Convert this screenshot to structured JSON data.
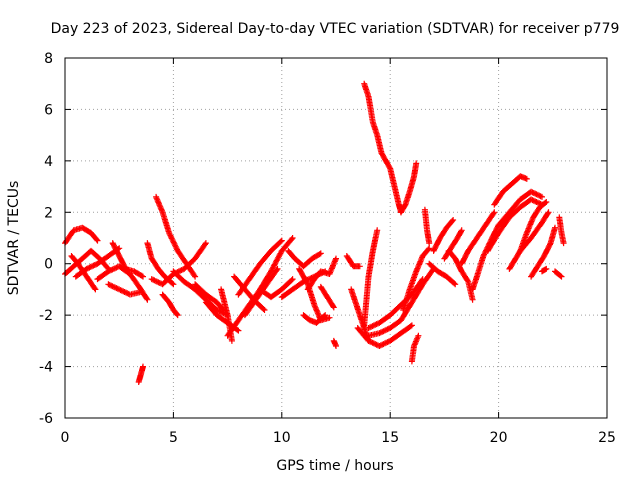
{
  "chart_data": {
    "type": "scatter",
    "title": "Day 223 of 2023, Sidereal Day-to-day VTEC variation (SDTVAR) for receiver p779",
    "xlabel": "GPS time / hours",
    "ylabel": "SDTVAR / TECUs",
    "xlim": [
      0,
      25
    ],
    "ylim": [
      -6,
      8
    ],
    "xticks": [
      0,
      5,
      10,
      15,
      20,
      25
    ],
    "yticks": [
      -6,
      -4,
      -2,
      0,
      2,
      4,
      6,
      8
    ],
    "grid": true,
    "marker": "+",
    "series": [
      {
        "name": "SDTVAR",
        "color": "#ff0000",
        "segments": [
          [
            [
              0.0,
              0.8
            ],
            [
              0.4,
              1.3
            ],
            [
              0.8,
              1.4
            ],
            [
              1.2,
              1.2
            ],
            [
              1.5,
              0.9
            ]
          ],
          [
            [
              0.0,
              -0.4
            ],
            [
              0.4,
              -0.1
            ],
            [
              0.8,
              0.2
            ],
            [
              1.2,
              0.5
            ],
            [
              1.6,
              0.2
            ],
            [
              2.0,
              -0.2
            ]
          ],
          [
            [
              0.3,
              0.3
            ],
            [
              0.6,
              0.0
            ],
            [
              1.0,
              -0.5
            ],
            [
              1.4,
              -1.0
            ]
          ],
          [
            [
              0.5,
              -0.5
            ],
            [
              1.0,
              -0.2
            ],
            [
              1.5,
              0.0
            ],
            [
              2.0,
              0.3
            ],
            [
              2.5,
              0.6
            ]
          ],
          [
            [
              1.5,
              -0.6
            ],
            [
              2.0,
              -0.3
            ],
            [
              2.5,
              -0.1
            ],
            [
              3.0,
              -0.4
            ],
            [
              3.5,
              -1.0
            ],
            [
              3.8,
              -1.4
            ]
          ],
          [
            [
              2.2,
              0.8
            ],
            [
              2.5,
              0.3
            ],
            [
              2.8,
              -0.2
            ],
            [
              3.2,
              -0.3
            ],
            [
              3.6,
              -0.5
            ]
          ],
          [
            [
              2.0,
              -0.8
            ],
            [
              2.5,
              -1.0
            ],
            [
              3.0,
              -1.2
            ],
            [
              3.5,
              -1.1
            ]
          ],
          [
            [
              3.4,
              -4.6
            ],
            [
              3.5,
              -4.3
            ],
            [
              3.6,
              -4.0
            ]
          ],
          [
            [
              3.8,
              0.8
            ],
            [
              4.0,
              0.2
            ],
            [
              4.3,
              -0.2
            ],
            [
              4.6,
              -0.5
            ],
            [
              5.0,
              -0.8
            ]
          ],
          [
            [
              4.2,
              2.6
            ],
            [
              4.5,
              2.0
            ],
            [
              4.8,
              1.2
            ],
            [
              5.2,
              0.5
            ],
            [
              5.6,
              0.0
            ],
            [
              6.0,
              -0.5
            ]
          ],
          [
            [
              4.5,
              -1.2
            ],
            [
              4.8,
              -1.5
            ],
            [
              5.0,
              -1.8
            ],
            [
              5.2,
              -2.0
            ]
          ],
          [
            [
              4.0,
              -0.6
            ],
            [
              4.5,
              -0.8
            ],
            [
              5.0,
              -0.4
            ],
            [
              5.5,
              -0.2
            ],
            [
              6.0,
              0.2
            ],
            [
              6.5,
              0.8
            ]
          ],
          [
            [
              5.0,
              -0.3
            ],
            [
              5.5,
              -0.7
            ],
            [
              6.0,
              -1.0
            ],
            [
              6.5,
              -1.4
            ],
            [
              7.0,
              -1.8
            ],
            [
              7.5,
              -2.0
            ]
          ],
          [
            [
              6.0,
              -0.8
            ],
            [
              6.5,
              -1.2
            ],
            [
              7.0,
              -1.5
            ],
            [
              7.3,
              -1.8
            ]
          ],
          [
            [
              6.5,
              -1.5
            ],
            [
              7.0,
              -2.0
            ],
            [
              7.5,
              -2.3
            ],
            [
              8.0,
              -2.6
            ]
          ],
          [
            [
              7.2,
              -1.0
            ],
            [
              7.5,
              -2.0
            ],
            [
              7.7,
              -3.0
            ]
          ],
          [
            [
              7.5,
              -2.8
            ],
            [
              8.0,
              -2.2
            ],
            [
              8.5,
              -1.6
            ],
            [
              9.0,
              -1.0
            ],
            [
              9.5,
              -0.3
            ],
            [
              10.0,
              0.5
            ],
            [
              10.5,
              1.0
            ]
          ],
          [
            [
              8.0,
              -1.2
            ],
            [
              8.5,
              -0.6
            ],
            [
              9.0,
              0.0
            ],
            [
              9.5,
              0.5
            ],
            [
              10.0,
              0.9
            ]
          ],
          [
            [
              8.3,
              -2.0
            ],
            [
              8.8,
              -1.4
            ],
            [
              9.3,
              -0.8
            ],
            [
              9.8,
              -0.2
            ]
          ],
          [
            [
              7.8,
              -0.5
            ],
            [
              8.2,
              -0.9
            ],
            [
              8.7,
              -1.4
            ],
            [
              9.2,
              -1.8
            ]
          ],
          [
            [
              9.0,
              -1.0
            ],
            [
              9.5,
              -1.3
            ],
            [
              10.0,
              -1.0
            ],
            [
              10.5,
              -0.6
            ]
          ],
          [
            [
              10.0,
              -1.3
            ],
            [
              10.5,
              -1.0
            ],
            [
              11.0,
              -0.7
            ],
            [
              11.5,
              -0.5
            ],
            [
              12.0,
              -0.3
            ]
          ],
          [
            [
              10.3,
              0.5
            ],
            [
              10.6,
              0.2
            ],
            [
              11.0,
              -0.1
            ],
            [
              11.4,
              0.2
            ],
            [
              11.8,
              0.4
            ]
          ],
          [
            [
              10.8,
              -0.2
            ],
            [
              11.2,
              -0.8
            ],
            [
              11.5,
              -1.6
            ],
            [
              11.8,
              -2.2
            ],
            [
              12.2,
              -2.1
            ]
          ],
          [
            [
              11.0,
              -2.0
            ],
            [
              11.3,
              -2.2
            ],
            [
              11.6,
              -2.3
            ],
            [
              12.0,
              -2.0
            ]
          ],
          [
            [
              11.2,
              -1.0
            ],
            [
              11.5,
              -0.6
            ],
            [
              11.8,
              -0.3
            ],
            [
              12.2,
              -0.4
            ],
            [
              12.5,
              0.2
            ]
          ],
          [
            [
              11.8,
              -0.9
            ],
            [
              12.1,
              -1.3
            ],
            [
              12.4,
              -1.7
            ]
          ],
          [
            [
              12.4,
              -3.0
            ],
            [
              12.5,
              -3.2
            ]
          ],
          [
            [
              13.0,
              0.3
            ],
            [
              13.3,
              -0.1
            ],
            [
              13.6,
              -0.1
            ]
          ],
          [
            [
              13.2,
              -1.0
            ],
            [
              13.4,
              -1.5
            ],
            [
              13.6,
              -2.0
            ],
            [
              13.8,
              -2.5
            ],
            [
              14.0,
              -3.0
            ]
          ],
          [
            [
              13.8,
              -2.4
            ],
            [
              14.0,
              -0.5
            ],
            [
              14.2,
              0.5
            ],
            [
              14.4,
              1.3
            ]
          ],
          [
            [
              13.8,
              7.0
            ],
            [
              14.0,
              6.5
            ],
            [
              14.2,
              5.5
            ],
            [
              14.4,
              5.0
            ],
            [
              14.6,
              4.3
            ],
            [
              14.8,
              4.0
            ],
            [
              15.0,
              3.7
            ],
            [
              15.2,
              3.0
            ],
            [
              15.4,
              2.3
            ],
            [
              15.5,
              2.0
            ]
          ],
          [
            [
              15.5,
              2.0
            ],
            [
              15.7,
              2.3
            ],
            [
              15.9,
              2.8
            ],
            [
              16.1,
              3.4
            ],
            [
              16.2,
              3.9
            ]
          ],
          [
            [
              13.5,
              -2.5
            ],
            [
              14.0,
              -3.0
            ],
            [
              14.5,
              -3.2
            ],
            [
              15.0,
              -3.0
            ],
            [
              15.5,
              -2.7
            ],
            [
              16.0,
              -2.4
            ]
          ],
          [
            [
              14.0,
              -2.5
            ],
            [
              14.5,
              -2.3
            ],
            [
              15.0,
              -2.0
            ],
            [
              15.5,
              -1.6
            ],
            [
              16.0,
              -1.2
            ],
            [
              16.5,
              -0.6
            ]
          ],
          [
            [
              14.0,
              -2.8
            ],
            [
              14.5,
              -2.7
            ],
            [
              15.0,
              -2.5
            ],
            [
              15.5,
              -2.2
            ],
            [
              16.0,
              -1.5
            ],
            [
              16.5,
              -0.8
            ],
            [
              17.0,
              -0.2
            ]
          ],
          [
            [
              15.6,
              -1.8
            ],
            [
              15.9,
              -1.0
            ],
            [
              16.2,
              -0.3
            ],
            [
              16.5,
              0.3
            ],
            [
              16.8,
              0.6
            ]
          ],
          [
            [
              16.3,
              -2.8
            ],
            [
              16.1,
              -3.2
            ],
            [
              16.0,
              -3.8
            ]
          ],
          [
            [
              16.6,
              2.1
            ],
            [
              16.7,
              1.3
            ],
            [
              16.8,
              0.8
            ]
          ],
          [
            [
              16.8,
              0.0
            ],
            [
              17.2,
              -0.3
            ],
            [
              17.6,
              -0.5
            ],
            [
              18.0,
              -0.8
            ]
          ],
          [
            [
              17.0,
              0.5
            ],
            [
              17.3,
              1.0
            ],
            [
              17.6,
              1.4
            ],
            [
              17.9,
              1.7
            ]
          ],
          [
            [
              17.5,
              0.2
            ],
            [
              17.8,
              0.6
            ],
            [
              18.1,
              1.0
            ],
            [
              18.3,
              1.3
            ]
          ],
          [
            [
              17.7,
              0.5
            ],
            [
              18.0,
              0.2
            ],
            [
              18.3,
              -0.3
            ],
            [
              18.6,
              -0.7
            ],
            [
              18.8,
              -1.4
            ]
          ],
          [
            [
              18.3,
              0.0
            ],
            [
              18.6,
              0.5
            ],
            [
              19.0,
              1.0
            ],
            [
              19.4,
              1.5
            ],
            [
              19.8,
              2.0
            ]
          ],
          [
            [
              18.8,
              -1.0
            ],
            [
              19.0,
              -0.5
            ],
            [
              19.3,
              0.3
            ],
            [
              19.7,
              1.0
            ],
            [
              20.0,
              1.5
            ],
            [
              20.5,
              2.0
            ],
            [
              21.0,
              2.5
            ],
            [
              21.5,
              2.8
            ],
            [
              22.0,
              2.6
            ]
          ],
          [
            [
              19.5,
              0.5
            ],
            [
              20.0,
              1.2
            ],
            [
              20.5,
              1.8
            ],
            [
              21.0,
              2.2
            ],
            [
              21.5,
              2.5
            ],
            [
              22.0,
              2.3
            ]
          ],
          [
            [
              19.8,
              2.3
            ],
            [
              20.2,
              2.8
            ],
            [
              20.6,
              3.1
            ],
            [
              21.0,
              3.4
            ],
            [
              21.3,
              3.3
            ]
          ],
          [
            [
              20.5,
              -0.2
            ],
            [
              21.0,
              0.5
            ],
            [
              21.5,
              1.0
            ],
            [
              22.0,
              1.6
            ],
            [
              22.3,
              2.0
            ]
          ],
          [
            [
              21.0,
              0.5
            ],
            [
              21.3,
              1.2
            ],
            [
              21.6,
              1.8
            ],
            [
              21.9,
              2.2
            ],
            [
              22.2,
              2.4
            ]
          ],
          [
            [
              21.5,
              -0.5
            ],
            [
              21.8,
              -0.1
            ],
            [
              22.1,
              0.3
            ],
            [
              22.4,
              0.8
            ],
            [
              22.6,
              1.4
            ]
          ],
          [
            [
              22.0,
              -0.3
            ],
            [
              22.2,
              -0.2
            ]
          ],
          [
            [
              22.8,
              1.8
            ],
            [
              22.9,
              1.2
            ],
            [
              23.0,
              0.8
            ]
          ],
          [
            [
              22.6,
              -0.3
            ],
            [
              22.9,
              -0.5
            ]
          ]
        ]
      }
    ]
  }
}
